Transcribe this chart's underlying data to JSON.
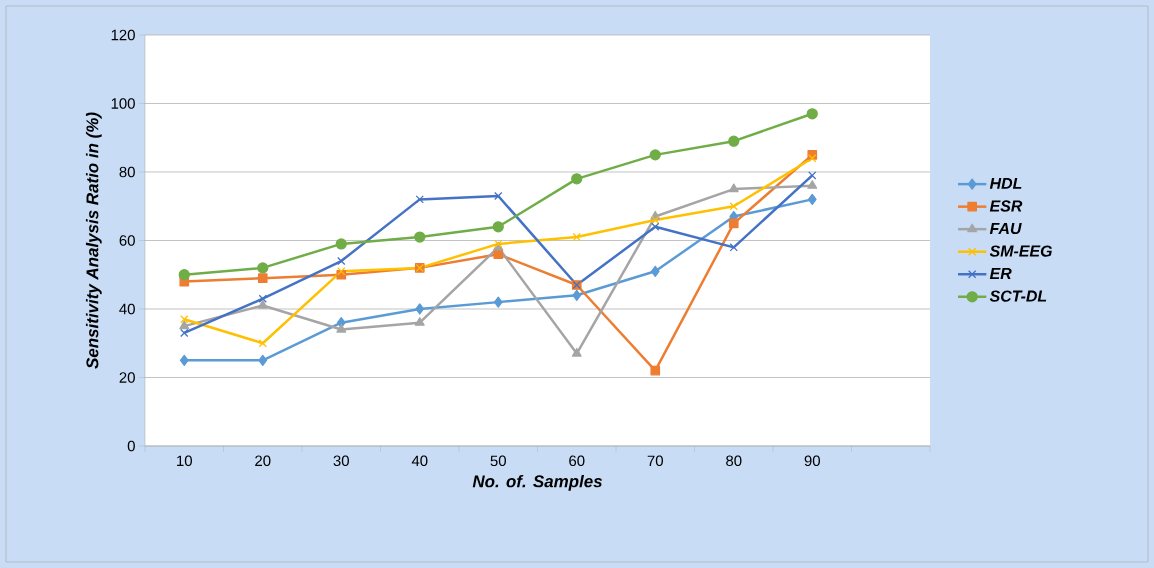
{
  "chart_data": {
    "type": "line",
    "xlabel": "No. of. Samples",
    "ylabel": "Sensitivity Analysis Ratio in (%)",
    "categories": [
      "10",
      "20",
      "30",
      "40",
      "50",
      "60",
      "70",
      "80",
      "90",
      null
    ],
    "ylim": [
      0,
      120
    ],
    "yticks": [
      0,
      20,
      40,
      60,
      80,
      100,
      120
    ],
    "grid": "y",
    "legend": "right",
    "series": [
      {
        "name": "HDL",
        "color": "#5b9bd5",
        "marker": "diamond",
        "values": [
          25,
          25,
          36,
          40,
          42,
          44,
          51,
          67,
          72,
          null
        ]
      },
      {
        "name": "ESR",
        "color": "#ed7d31",
        "marker": "square",
        "values": [
          48,
          49,
          50,
          52,
          56,
          47,
          22,
          65,
          85,
          null
        ]
      },
      {
        "name": "FAU",
        "color": "#a5a5a5",
        "marker": "triangle",
        "values": [
          35,
          41,
          34,
          36,
          58,
          27,
          67,
          75,
          76,
          null
        ]
      },
      {
        "name": "SM-EEG",
        "color": "#ffc000",
        "marker": "cross",
        "values": [
          37,
          30,
          51,
          52,
          59,
          61,
          66,
          70,
          84,
          null
        ]
      },
      {
        "name": "ER",
        "color": "#4472c4",
        "marker": "cross",
        "values": [
          33,
          43,
          54,
          72,
          73,
          47,
          64,
          58,
          79,
          null
        ]
      },
      {
        "name": "SCT-DL",
        "color": "#70ad47",
        "marker": "circle",
        "values": [
          50,
          52,
          59,
          61,
          64,
          78,
          85,
          89,
          97,
          null
        ]
      }
    ]
  }
}
